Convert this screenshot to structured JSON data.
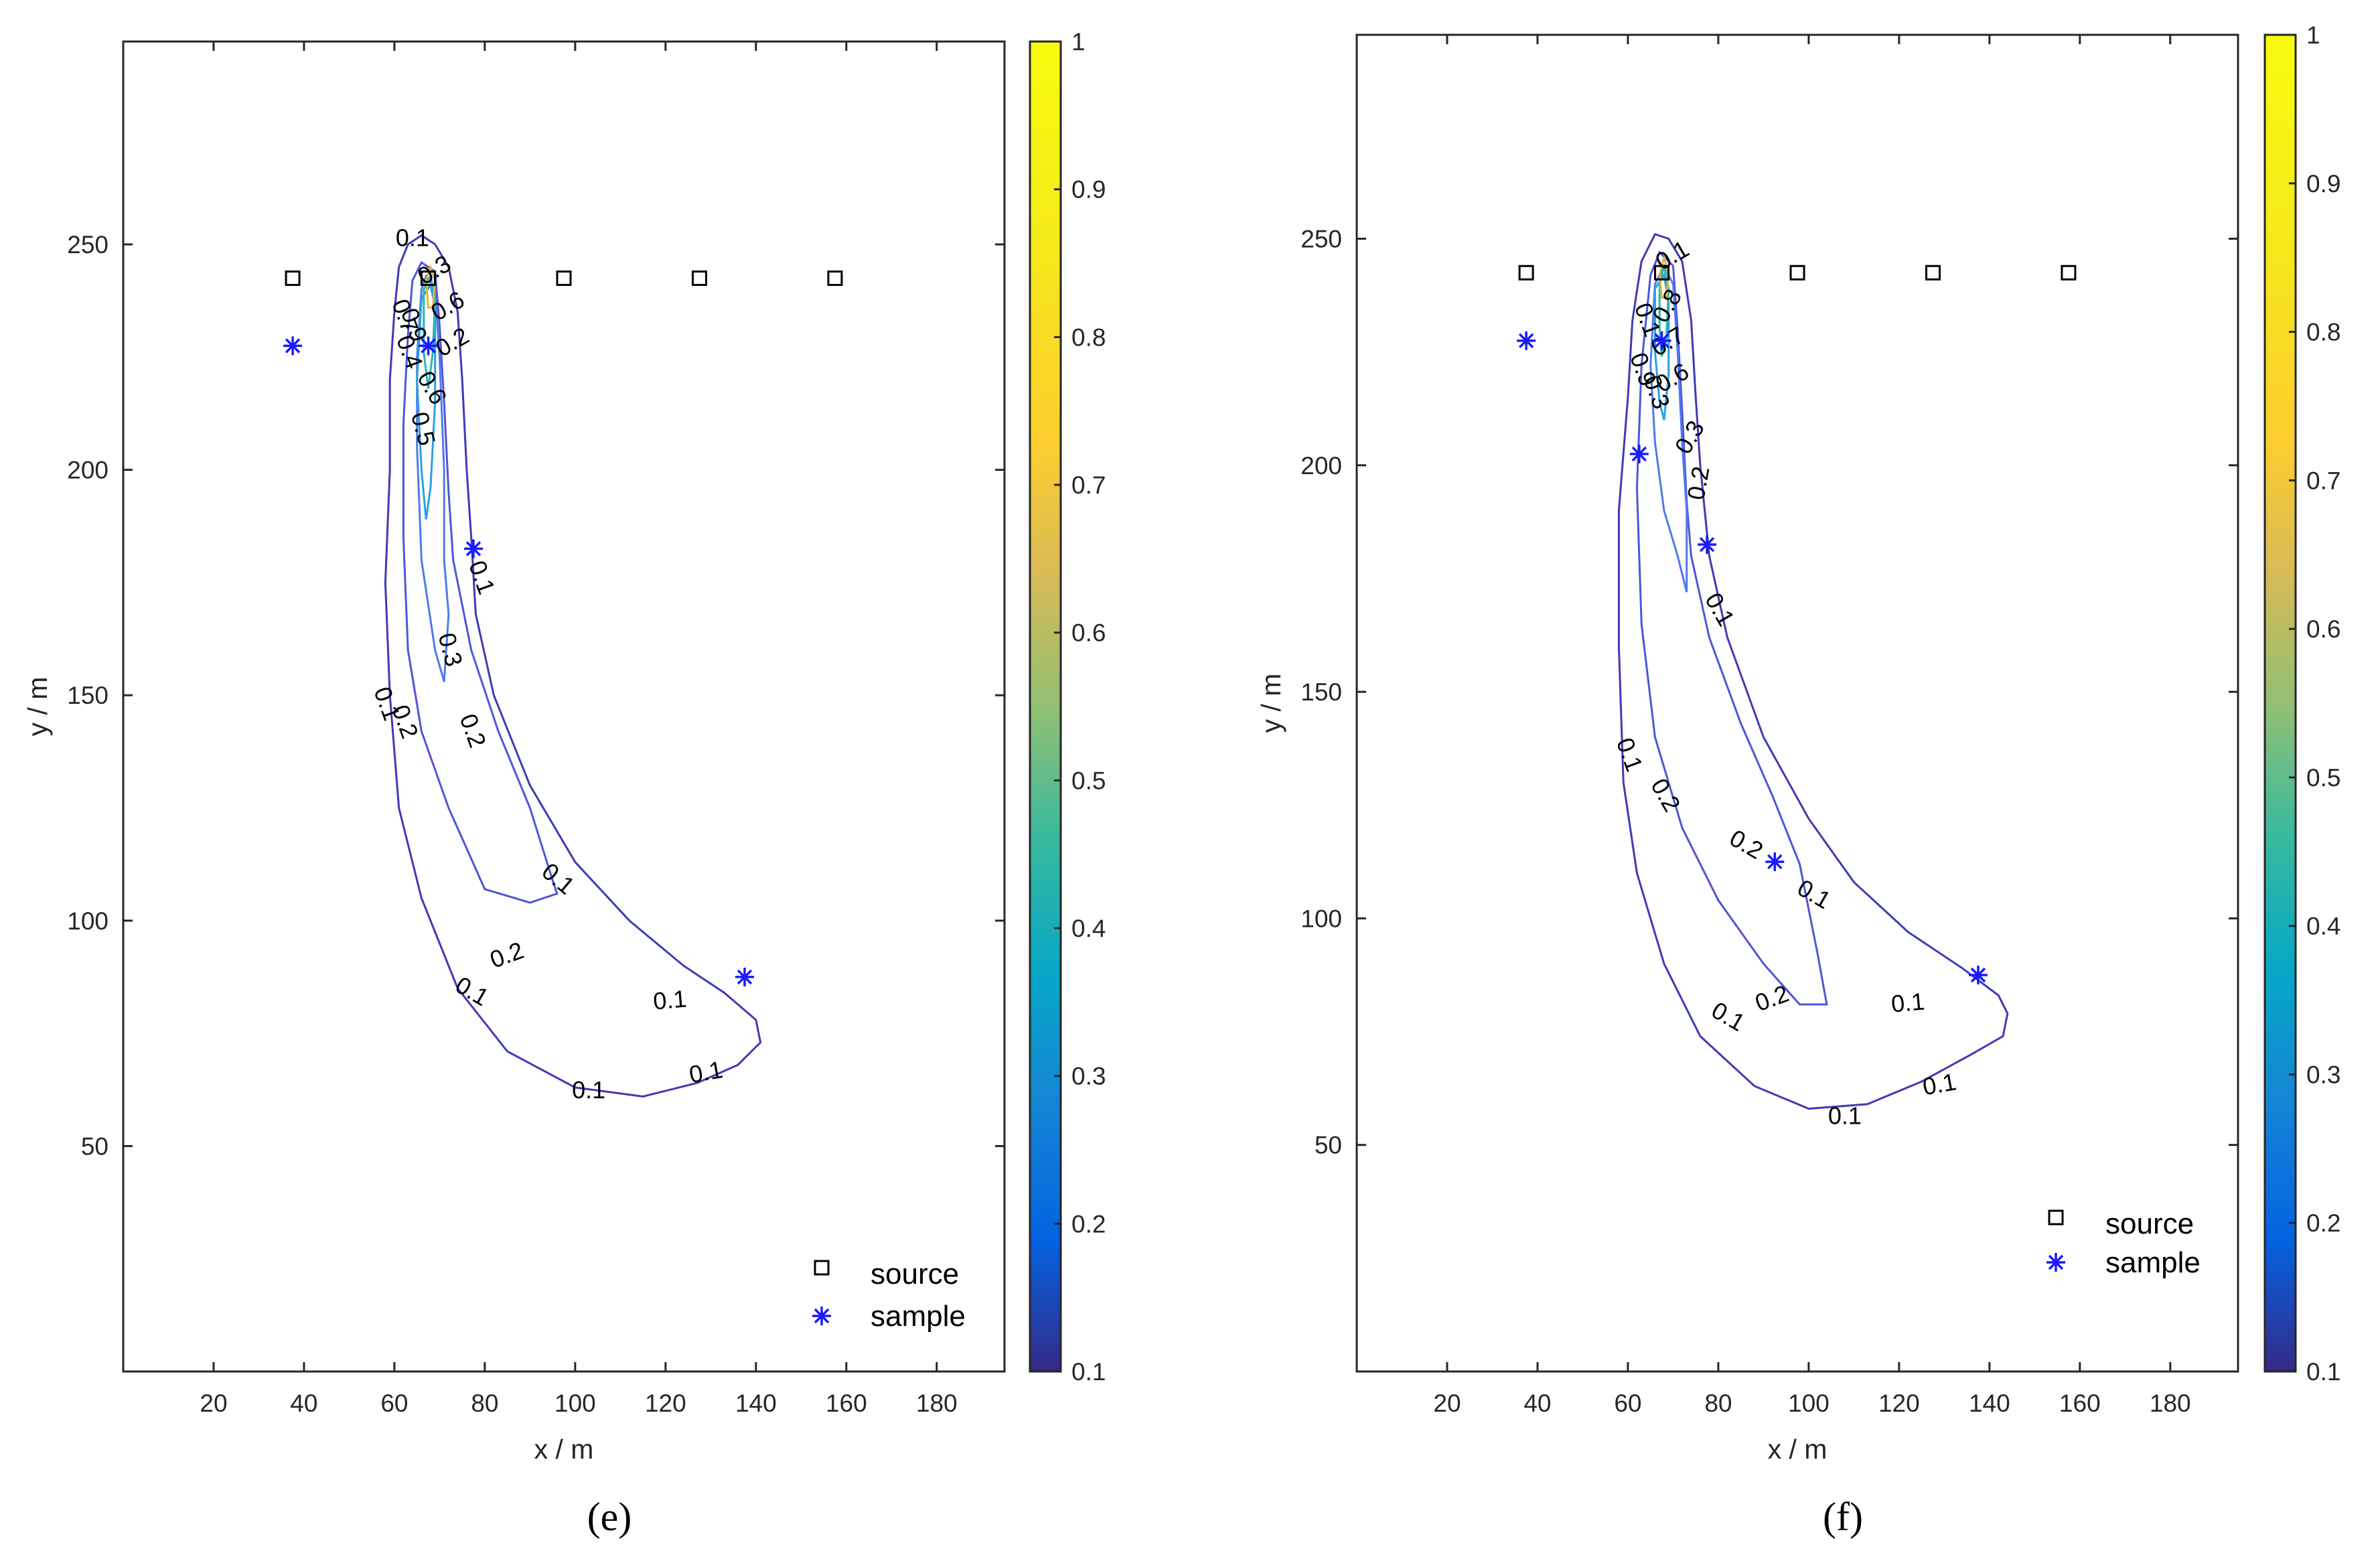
{
  "chart_data": [
    {
      "type": "contour",
      "panel_label": "(e)",
      "xlabel": "x / m",
      "ylabel": "y / m",
      "xlim": [
        0,
        195
      ],
      "ylim": [
        0,
        295
      ],
      "xticks": [
        20,
        40,
        60,
        80,
        100,
        120,
        140,
        160,
        180
      ],
      "yticks": [
        50,
        100,
        150,
        200,
        250
      ],
      "colorbar": {
        "min": 0.1,
        "max": 1,
        "ticks": [
          "0.1",
          "0.2",
          "0.3",
          "0.4",
          "0.5",
          "0.6",
          "0.7",
          "0.8",
          "0.9",
          "1"
        ]
      },
      "legend": {
        "position": "bottom-right",
        "entries": [
          "source",
          "sample"
        ]
      },
      "sources": [
        [
          37.5,
          242.5
        ],
        [
          67.5,
          242.5
        ],
        [
          97.5,
          242.5
        ],
        [
          127.5,
          242.5
        ],
        [
          157.5,
          242.5
        ]
      ],
      "samples": [
        [
          37.5,
          227.5
        ],
        [
          67.5,
          227.5
        ],
        [
          77.5,
          182.5
        ],
        [
          137.5,
          87.5
        ]
      ],
      "contours": [
        {
          "level": 0.1,
          "color": "#3d3bb6",
          "points": [
            [
              61,
              245
            ],
            [
              63,
              250
            ],
            [
              66,
              252
            ],
            [
              69,
              250
            ],
            [
              72,
              245
            ],
            [
              74,
              235
            ],
            [
              75,
              220
            ],
            [
              76,
              200
            ],
            [
              77,
              185
            ],
            [
              78,
              168
            ],
            [
              82,
              150
            ],
            [
              90,
              130
            ],
            [
              100,
              113
            ],
            [
              112,
              100
            ],
            [
              124,
              90
            ],
            [
              133,
              84
            ],
            [
              140,
              78
            ],
            [
              141,
              73
            ],
            [
              136,
              68
            ],
            [
              127,
              64
            ],
            [
              115,
              61
            ],
            [
              100,
              63
            ],
            [
              85,
              71
            ],
            [
              74,
              85
            ],
            [
              66,
              105
            ],
            [
              61,
              125
            ],
            [
              59,
              150
            ],
            [
              58,
              175
            ],
            [
              59,
              200
            ],
            [
              59,
              220
            ],
            [
              60,
              235
            ],
            [
              61,
              245
            ]
          ]
        },
        {
          "level": 0.2,
          "color": "#4e55d9",
          "points": [
            [
              64,
              242
            ],
            [
              66,
              246
            ],
            [
              69,
              244
            ],
            [
              70,
              232
            ],
            [
              71,
              215
            ],
            [
              72,
              195
            ],
            [
              73,
              180
            ],
            [
              77,
              160
            ],
            [
              83,
              142
            ],
            [
              90,
              125
            ],
            [
              95,
              109
            ],
            [
              96,
              106
            ],
            [
              90,
              104
            ],
            [
              80,
              107
            ],
            [
              72,
              125
            ],
            [
              66,
              142
            ],
            [
              63,
              160
            ],
            [
              62,
              185
            ],
            [
              62,
              210
            ],
            [
              63,
              230
            ],
            [
              64,
              242
            ]
          ]
        },
        {
          "level": 0.3,
          "color": "#4f7aea",
          "points": [
            [
              66,
              240
            ],
            [
              67,
              243
            ],
            [
              69,
              240
            ],
            [
              70,
              225
            ],
            [
              71,
              200
            ],
            [
              71,
              180
            ],
            [
              72,
              168
            ],
            [
              71,
              153
            ],
            [
              69,
              160
            ],
            [
              66,
              180
            ],
            [
              65,
              205
            ],
            [
              65,
              225
            ],
            [
              66,
              240
            ]
          ]
        },
        {
          "level": 0.5,
          "color": "#2a9fe0",
          "points": [
            [
              66,
              238
            ],
            [
              68,
              241
            ],
            [
              69,
              236
            ],
            [
              69,
              215
            ],
            [
              68,
              196
            ],
            [
              67,
              189
            ],
            [
              66,
              200
            ],
            [
              65,
              220
            ],
            [
              66,
              238
            ]
          ]
        },
        {
          "level": 0.7,
          "color": "#22b7b8",
          "points": [
            [
              66.5,
              240
            ],
            [
              68,
              243
            ],
            [
              69,
              238
            ],
            [
              68.5,
              226
            ],
            [
              67.5,
              218
            ],
            [
              66.5,
              226
            ],
            [
              66.5,
              240
            ]
          ]
        },
        {
          "level": 0.9,
          "color": "#e6b43a",
          "points": [
            [
              67,
              242
            ],
            [
              68,
              245
            ],
            [
              69,
              242
            ],
            [
              68.5,
              236
            ],
            [
              67.5,
              236
            ],
            [
              67,
              242
            ]
          ]
        }
      ],
      "contour_labels": [
        {
          "text": "0.1",
          "x": 64,
          "y": 251,
          "angle": 0
        },
        {
          "text": "0.3",
          "x": 69,
          "y": 244,
          "angle": -30
        },
        {
          "text": "0.6",
          "x": 72,
          "y": 236,
          "angle": -30
        },
        {
          "text": "0.7",
          "x": 62,
          "y": 234,
          "angle": 70
        },
        {
          "text": "0.9",
          "x": 64,
          "y": 232,
          "angle": 70
        },
        {
          "text": "0.2",
          "x": 73,
          "y": 228,
          "angle": -30
        },
        {
          "text": "0.4",
          "x": 63,
          "y": 226,
          "angle": 70
        },
        {
          "text": "0.6",
          "x": 68,
          "y": 218,
          "angle": 60
        },
        {
          "text": "0.5",
          "x": 66,
          "y": 209,
          "angle": 75
        },
        {
          "text": "0.1",
          "x": 79,
          "y": 176,
          "angle": 70
        },
        {
          "text": "0.3",
          "x": 72,
          "y": 160,
          "angle": 75
        },
        {
          "text": "0.1",
          "x": 58,
          "y": 148,
          "angle": 70
        },
        {
          "text": "0.2",
          "x": 62,
          "y": 144,
          "angle": 70
        },
        {
          "text": "0.2",
          "x": 77,
          "y": 142,
          "angle": 70
        },
        {
          "text": "0.1",
          "x": 96,
          "y": 109,
          "angle": 40
        },
        {
          "text": "0.2",
          "x": 85,
          "y": 92,
          "angle": -20
        },
        {
          "text": "0.1",
          "x": 77,
          "y": 84,
          "angle": 30
        },
        {
          "text": "0.1",
          "x": 121,
          "y": 82,
          "angle": -5
        },
        {
          "text": "0.1",
          "x": 129,
          "y": 66,
          "angle": -10
        },
        {
          "text": "0.1",
          "x": 103,
          "y": 62,
          "angle": 0
        }
      ]
    },
    {
      "type": "contour",
      "panel_label": "(f)",
      "xlabel": "x / m",
      "ylabel": "y / m",
      "xlim": [
        0,
        195
      ],
      "ylim": [
        0,
        295
      ],
      "xticks": [
        20,
        40,
        60,
        80,
        100,
        120,
        140,
        160,
        180
      ],
      "yticks": [
        50,
        100,
        150,
        200,
        250
      ],
      "colorbar": {
        "min": 0.1,
        "max": 1,
        "ticks": [
          "0.1",
          "0.2",
          "0.3",
          "0.4",
          "0.5",
          "0.6",
          "0.7",
          "0.8",
          "0.9",
          "1"
        ]
      },
      "legend": {
        "position": "bottom-right",
        "entries": [
          "source",
          "sample"
        ]
      },
      "sources": [
        [
          37.5,
          242.5
        ],
        [
          67.5,
          242.5
        ],
        [
          97.5,
          242.5
        ],
        [
          127.5,
          242.5
        ],
        [
          157.5,
          242.5
        ]
      ],
      "samples": [
        [
          37.5,
          227.5
        ],
        [
          67.5,
          227.5
        ],
        [
          62.5,
          202.5
        ],
        [
          77.5,
          182.5
        ],
        [
          92.5,
          112.5
        ],
        [
          137.5,
          87.5
        ]
      ],
      "contours": [
        {
          "level": 0.1,
          "color": "#3d3bb6",
          "points": [
            [
              63,
              245
            ],
            [
              66,
              251
            ],
            [
              69,
              250
            ],
            [
              72,
              245
            ],
            [
              74,
              232
            ],
            [
              75,
              215
            ],
            [
              76,
              200
            ],
            [
              78,
              180
            ],
            [
              82,
              162
            ],
            [
              90,
              140
            ],
            [
              100,
              122
            ],
            [
              110,
              108
            ],
            [
              122,
              97
            ],
            [
              134,
              89
            ],
            [
              142,
              83
            ],
            [
              144,
              79
            ],
            [
              143,
              74
            ],
            [
              136,
              70
            ],
            [
              125,
              64
            ],
            [
              113,
              59
            ],
            [
              100,
              58
            ],
            [
              88,
              63
            ],
            [
              76,
              74
            ],
            [
              68,
              90
            ],
            [
              62,
              110
            ],
            [
              59,
              130
            ],
            [
              58,
              160
            ],
            [
              58,
              190
            ],
            [
              60,
              215
            ],
            [
              61,
              232
            ],
            [
              63,
              245
            ]
          ]
        },
        {
          "level": 0.2,
          "color": "#4e55d9",
          "points": [
            [
              65,
              242
            ],
            [
              67,
              247
            ],
            [
              70,
              244
            ],
            [
              71,
              230
            ],
            [
              72,
              212
            ],
            [
              73,
              192
            ],
            [
              74,
              180
            ],
            [
              78,
              162
            ],
            [
              85,
              143
            ],
            [
              92,
              127
            ],
            [
              98,
              112
            ],
            [
              102,
              92
            ],
            [
              104,
              81
            ],
            [
              98,
              81
            ],
            [
              90,
              90
            ],
            [
              80,
              104
            ],
            [
              72,
              120
            ],
            [
              66,
              140
            ],
            [
              63,
              165
            ],
            [
              62,
              195
            ],
            [
              63,
              222
            ],
            [
              65,
              242
            ]
          ]
        },
        {
          "level": 0.3,
          "color": "#4f7aea",
          "points": [
            [
              66,
              240
            ],
            [
              68,
              244
            ],
            [
              70,
              240
            ],
            [
              71,
              225
            ],
            [
              72,
              205
            ],
            [
              73,
              190
            ],
            [
              73,
              172
            ],
            [
              71,
              180
            ],
            [
              68,
              190
            ],
            [
              66,
              205
            ],
            [
              65,
              222
            ],
            [
              66,
              240
            ]
          ]
        },
        {
          "level": 0.5,
          "color": "#2a9fe0",
          "points": [
            [
              66,
              239
            ],
            [
              68,
              242
            ],
            [
              69,
              236
            ],
            [
              69,
              220
            ],
            [
              68,
              210
            ],
            [
              67,
              214
            ],
            [
              66,
              225
            ],
            [
              66,
              239
            ]
          ]
        },
        {
          "level": 0.7,
          "color": "#22b7b8",
          "points": [
            [
              67,
              240
            ],
            [
              68,
              244
            ],
            [
              69,
              239
            ],
            [
              68.5,
              228
            ],
            [
              67.5,
              224
            ],
            [
              67,
              230
            ],
            [
              67,
              240
            ]
          ]
        },
        {
          "level": 0.9,
          "color": "#e6b43a",
          "points": [
            [
              67,
              242
            ],
            [
              68,
              246
            ],
            [
              69,
              242
            ],
            [
              68.5,
              237
            ],
            [
              67.5,
              237
            ],
            [
              67,
              242
            ]
          ]
        }
      ],
      "contour_labels": [
        {
          "text": "0.1",
          "x": 70,
          "y": 246,
          "angle": -30
        },
        {
          "text": "0.8",
          "x": 69,
          "y": 235,
          "angle": -60
        },
        {
          "text": "0.1",
          "x": 64,
          "y": 232,
          "angle": 70
        },
        {
          "text": "0.7",
          "x": 69,
          "y": 227,
          "angle": -30
        },
        {
          "text": "0.9",
          "x": 63,
          "y": 221,
          "angle": 70
        },
        {
          "text": "0.6",
          "x": 70,
          "y": 219,
          "angle": -30
        },
        {
          "text": "0.3",
          "x": 66,
          "y": 216,
          "angle": 70
        },
        {
          "text": "0.3",
          "x": 74,
          "y": 206,
          "angle": -60
        },
        {
          "text": "0.2",
          "x": 76,
          "y": 196,
          "angle": -80
        },
        {
          "text": "0.1",
          "x": 80,
          "y": 168,
          "angle": 60
        },
        {
          "text": "0.1",
          "x": 60,
          "y": 136,
          "angle": 70
        },
        {
          "text": "0.2",
          "x": 68,
          "y": 127,
          "angle": 60
        },
        {
          "text": "0.2",
          "x": 86,
          "y": 116,
          "angle": 30
        },
        {
          "text": "0.1",
          "x": 101,
          "y": 105,
          "angle": 30
        },
        {
          "text": "0.2",
          "x": 92,
          "y": 82,
          "angle": -20
        },
        {
          "text": "0.1",
          "x": 82,
          "y": 78,
          "angle": 30
        },
        {
          "text": "0.1",
          "x": 122,
          "y": 81,
          "angle": -5
        },
        {
          "text": "0.1",
          "x": 129,
          "y": 63,
          "angle": -10
        },
        {
          "text": "0.1",
          "x": 108,
          "y": 56,
          "angle": 0
        }
      ]
    }
  ]
}
